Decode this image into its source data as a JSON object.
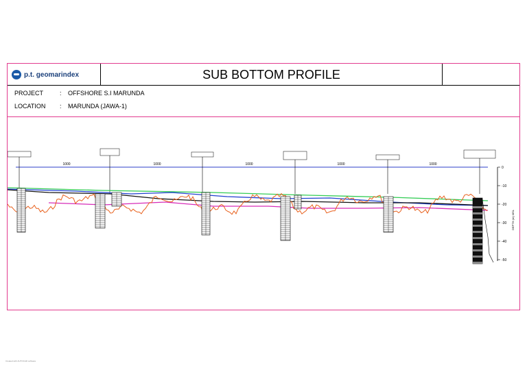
{
  "header": {
    "company": "p.t. geomarindex",
    "title": "SUB BOTTOM PROFILE"
  },
  "info": {
    "project_label": "PROJECT",
    "project_value": "OFFSHORE S.I MARUNDA",
    "location_label": "LOCATION",
    "location_value": "MARUNDA (JAWA-1)",
    "separator": ":"
  },
  "profile": {
    "segment_distances": [
      "1000",
      "1000",
      "1000",
      "1000",
      "1000"
    ],
    "depth_axis": {
      "ticks": [
        0,
        10,
        20,
        30,
        40,
        50
      ],
      "label": "DEPTH (m) MSL"
    },
    "colors": {
      "frame": "#e23a8e",
      "seabed_green": "#33cc55",
      "reflector_blue": "#1f3fd0",
      "reflector_black": "#111111",
      "reflector_magenta": "#d62bb8",
      "basement_orange": "#e8601c",
      "baseline_blue": "#2d3fc8"
    }
  },
  "footnote": "Created with AUTOCAD software"
}
